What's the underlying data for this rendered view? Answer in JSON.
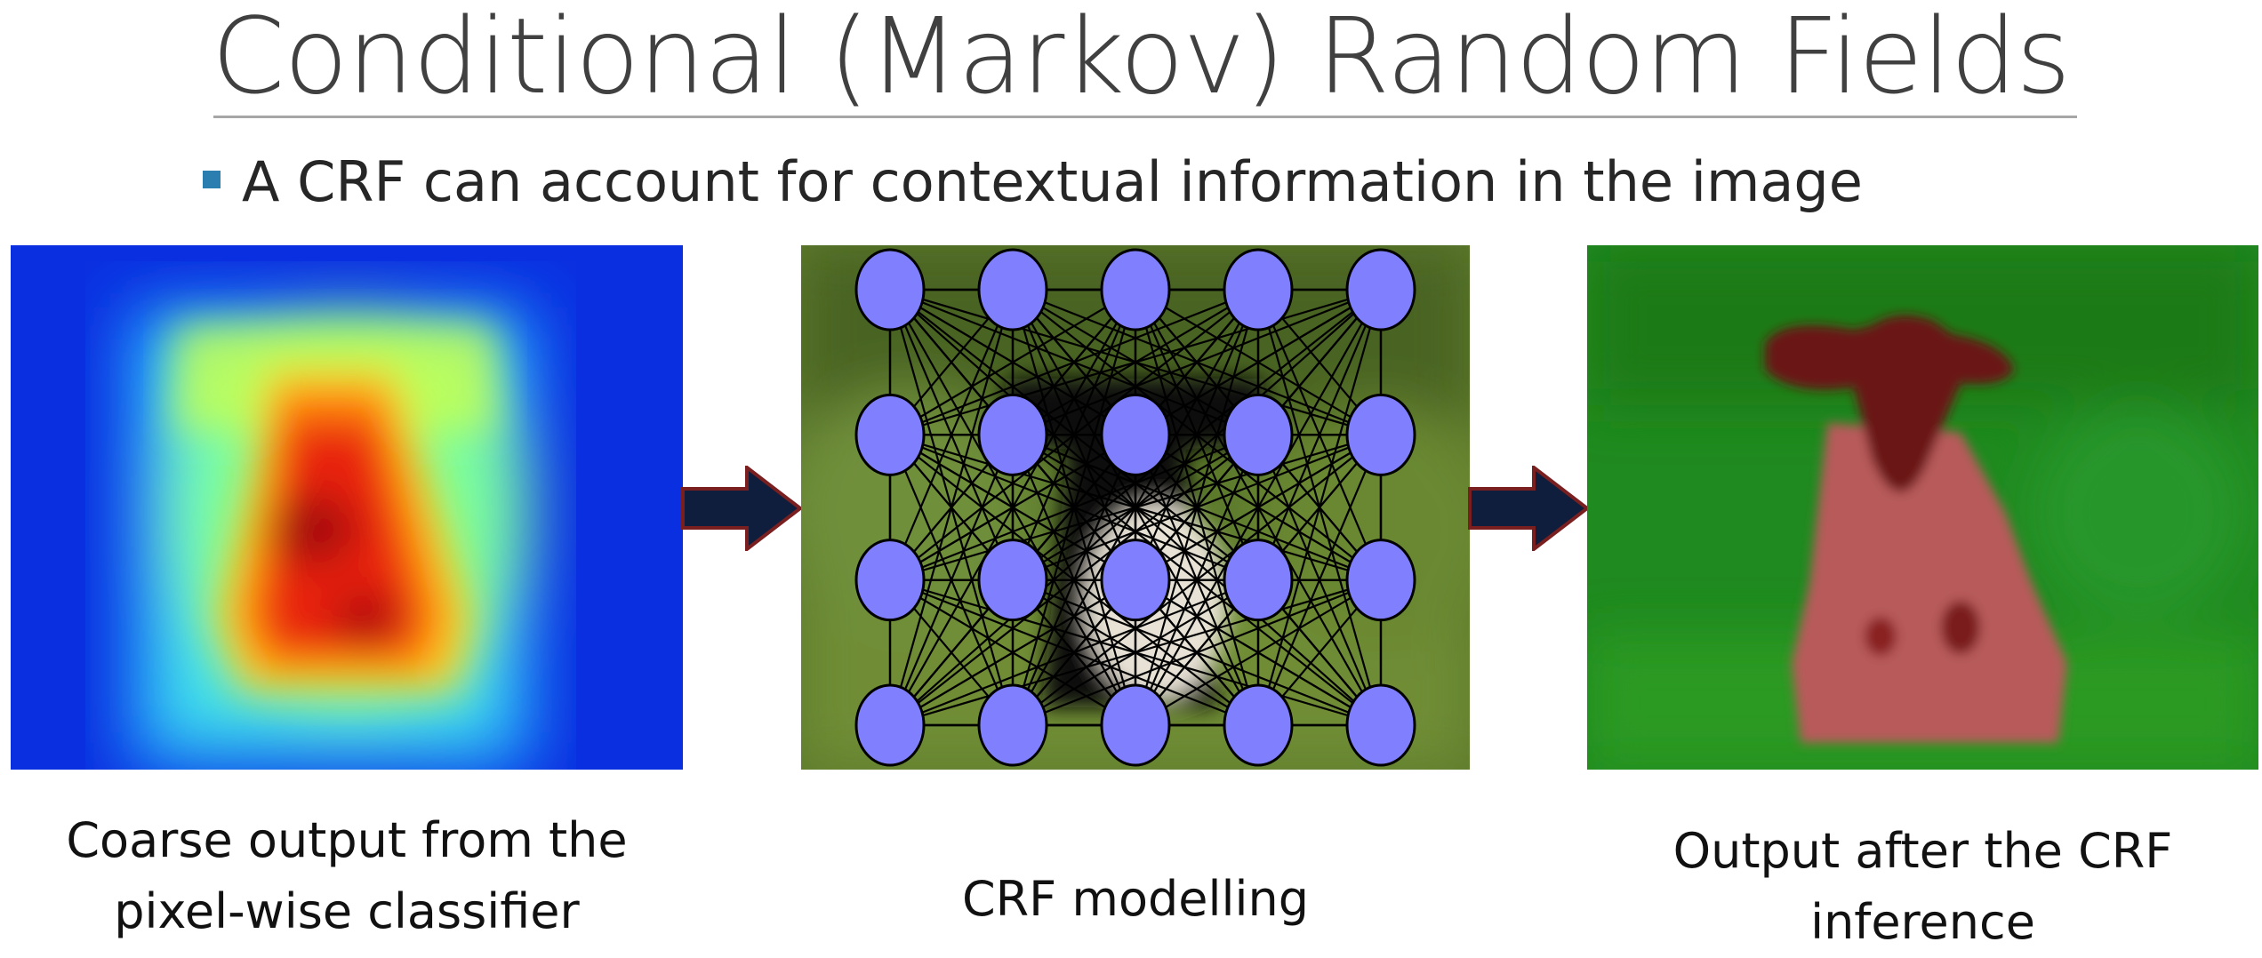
{
  "slide": {
    "title": "Conditional (Markov) Random Fields",
    "bullet": "A CRF can account for contextual information in the image"
  },
  "panels": [
    {
      "caption_line1": "Coarse output from the",
      "caption_line2": "pixel-wise classifier"
    },
    {
      "caption_line1": "CRF modelling"
    },
    {
      "caption_line1": "Output after the CRF",
      "caption_line2": "inference"
    }
  ],
  "crf_graph": {
    "rows": 4,
    "cols": 5,
    "node_color": "#8080ff"
  },
  "colors": {
    "arrow_fill": "#0f1e3c",
    "arrow_stroke": "#7a1f1f",
    "bullet": "#2b7fb0",
    "segmentation": "#b33a3a"
  }
}
